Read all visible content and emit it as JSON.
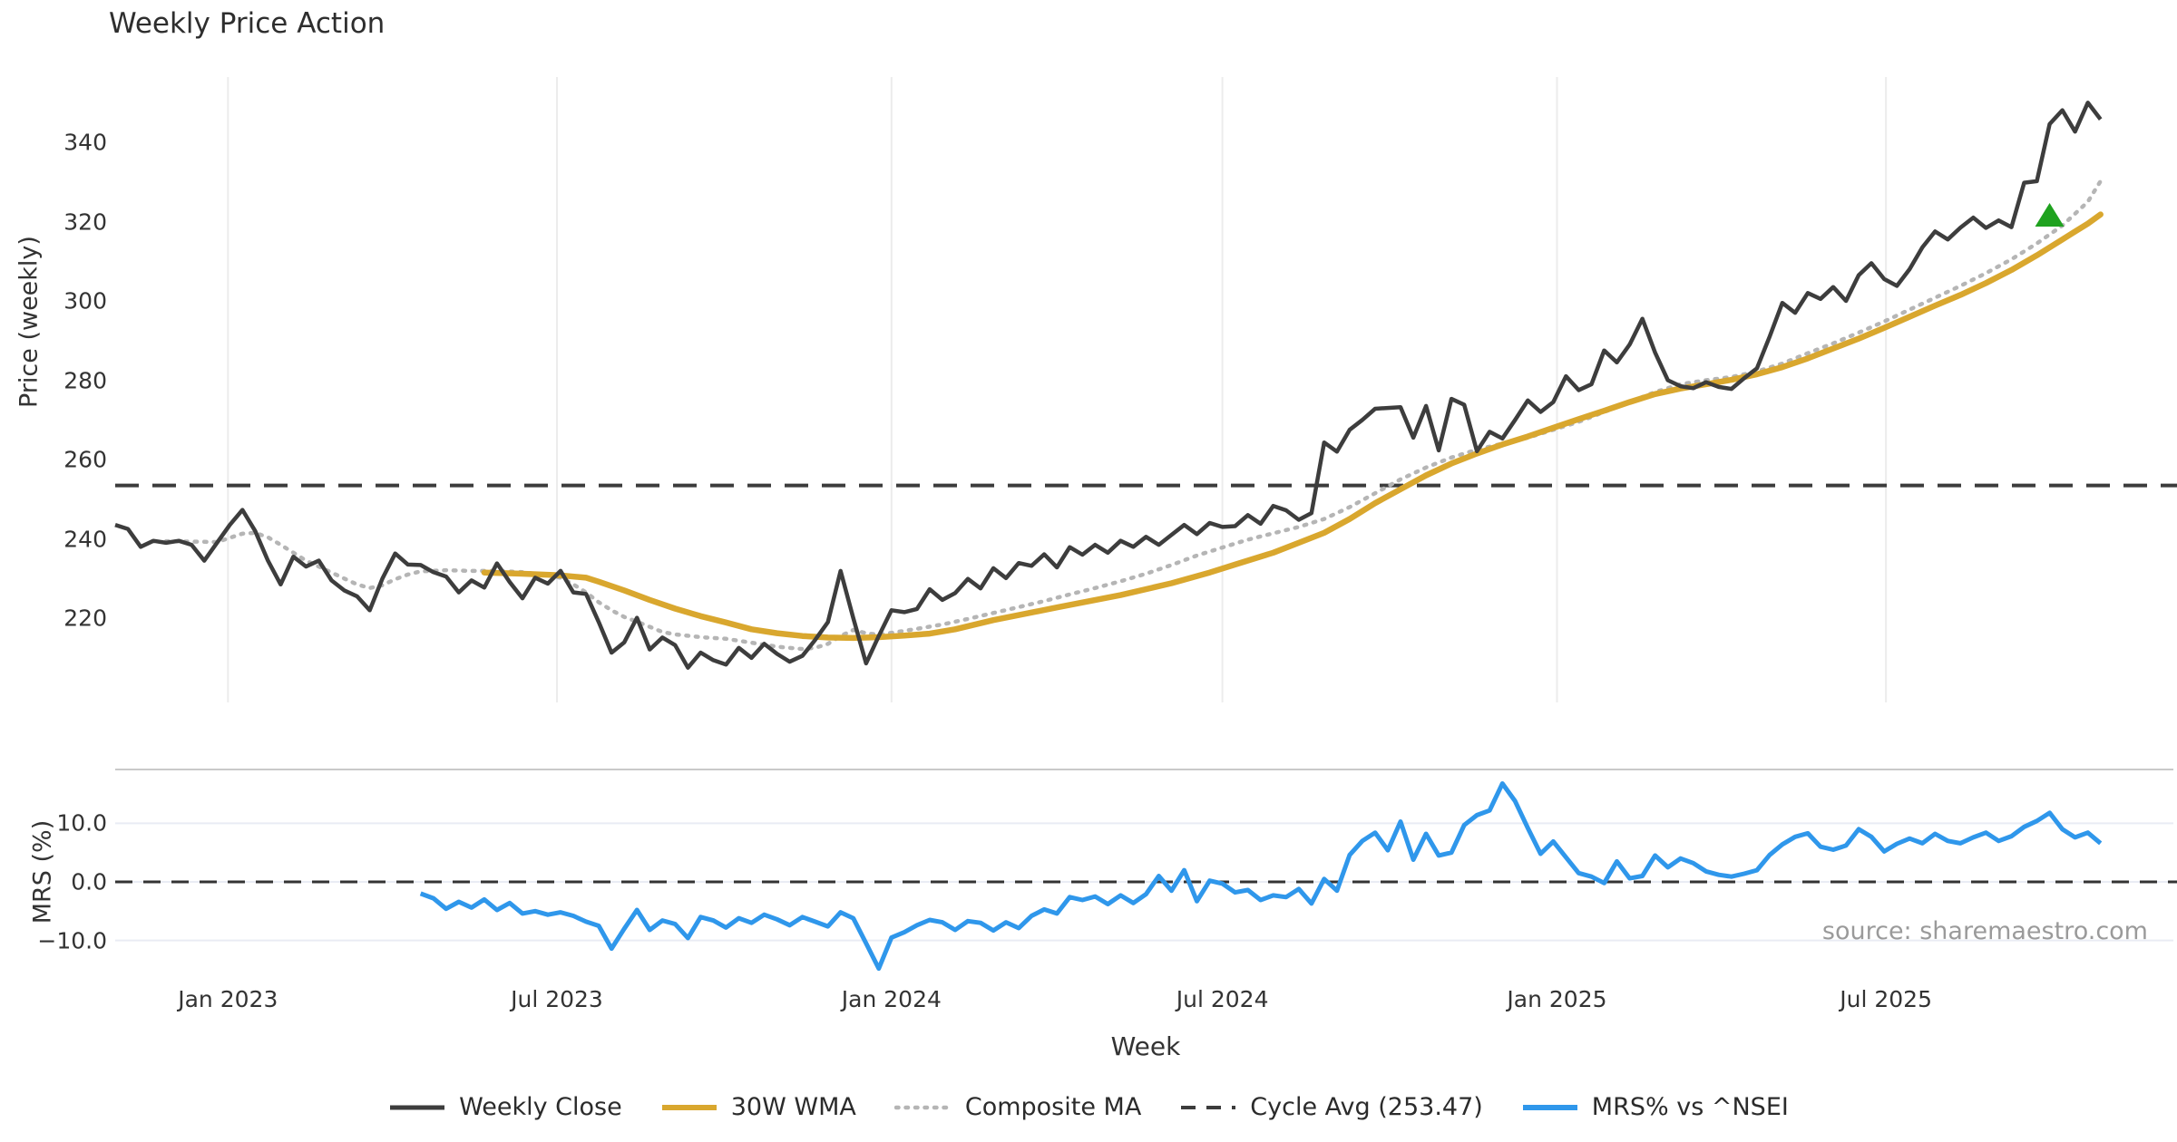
{
  "title": "Weekly Price Action",
  "source_note": "source: sharemaestro.com",
  "colors": {
    "weekly_close": "#3d3d3d",
    "wma_30w": "#d9a72e",
    "composite_ma": "#b5b5b5",
    "cycle_avg": "#3c3c3c",
    "mrs_line": "#2f97eb",
    "signal_marker": "#1fa21f",
    "grid_vertical": "#ececec",
    "grid_horizontal": "#e9ecf4",
    "panel_spine": "#c9c9c9",
    "text": "#333333",
    "source_text": "#9a9a9a"
  },
  "x_axis": {
    "label": "Week",
    "start_date": "2022-10-31",
    "frequency": "weekly",
    "ticks": [
      {
        "label": "Jan 2023",
        "week": 8.86
      },
      {
        "label": "Jul 2023",
        "week": 34.71
      },
      {
        "label": "Jan 2024",
        "week": 61.0
      },
      {
        "label": "Jul 2024",
        "week": 87.0
      },
      {
        "label": "Jan 2025",
        "week": 113.29
      },
      {
        "label": "Jul 2025",
        "week": 139.14
      }
    ]
  },
  "price_axis": {
    "label": "Price (weekly)",
    "ticks": [
      {
        "label": "220",
        "value": 220
      },
      {
        "label": "240",
        "value": 240
      },
      {
        "label": "260",
        "value": 260
      },
      {
        "label": "280",
        "value": 280
      },
      {
        "label": "300",
        "value": 300
      },
      {
        "label": "320",
        "value": 320
      },
      {
        "label": "340",
        "value": 340
      }
    ]
  },
  "mrs_axis": {
    "label": "MRS (%)",
    "ticks": [
      {
        "label": "10.0",
        "value": 10
      },
      {
        "label": "0.0",
        "value": 0
      },
      {
        "label": "−10.0",
        "value": -10
      }
    ]
  },
  "legend": [
    {
      "label": "Weekly Close",
      "style": "solid",
      "color": "#3d3d3d"
    },
    {
      "label": "30W WMA",
      "style": "solid-thick",
      "color": "#d9a72e"
    },
    {
      "label": "Composite MA",
      "style": "dotted",
      "color": "#b5b5b5"
    },
    {
      "label": "Cycle Avg (253.47)",
      "style": "dashed",
      "color": "#3c3c3c"
    },
    {
      "label": "MRS% vs ^NSEI",
      "style": "solid-thick",
      "color": "#2f97eb"
    }
  ],
  "chart_data": [
    {
      "type": "line",
      "panel": "price",
      "title": "Weekly Price Action",
      "ylabel": "Price (weekly)",
      "ylim": [
        205,
        355
      ],
      "grid": "vertical-only",
      "cycle_avg_value": 253.47,
      "signal_marker": {
        "symbol": "triangle-up",
        "week": 152,
        "value": 321.5,
        "color": "#1fa21f"
      },
      "series": [
        {
          "name": "Weekly Close",
          "start_week": 0,
          "values": [
            243.5,
            242.5,
            238.0,
            239.5,
            239.0,
            239.5,
            238.5,
            234.5,
            239.0,
            243.5,
            247.3,
            242.0,
            234.5,
            228.5,
            235.5,
            233.0,
            234.5,
            229.5,
            227.0,
            225.5,
            222.0,
            230.0,
            236.3,
            233.5,
            233.4,
            231.6,
            230.5,
            226.5,
            229.5,
            227.7,
            233.8,
            229.1,
            225.0,
            230.2,
            228.7,
            231.9,
            226.5,
            226.1,
            219.0,
            211.3,
            213.9,
            220.1,
            212.1,
            215.1,
            213.2,
            207.5,
            211.3,
            209.4,
            208.3,
            212.5,
            210.0,
            213.5,
            211.0,
            209.0,
            210.5,
            214.5,
            219.0,
            231.9,
            220.0,
            208.6,
            215.5,
            222.0,
            221.5,
            222.3,
            227.3,
            224.6,
            226.3,
            229.9,
            227.5,
            232.6,
            230.1,
            233.9,
            233.2,
            236.1,
            232.8,
            237.9,
            236.0,
            238.5,
            236.5,
            239.5,
            238.0,
            240.5,
            238.5,
            241.0,
            243.5,
            241.2,
            244.0,
            243.0,
            243.2,
            246.0,
            243.8,
            248.3,
            247.2,
            244.8,
            246.5,
            264.3,
            262.0,
            267.5,
            270.0,
            272.8,
            273.0,
            273.2,
            265.5,
            273.5,
            262.3,
            275.3,
            273.8,
            262.1,
            267.0,
            265.3,
            270.0,
            274.9,
            272.0,
            274.5,
            281.0,
            277.5,
            279.0,
            287.5,
            284.5,
            289.0,
            295.5,
            287.0,
            280.0,
            278.5,
            278.0,
            279.5,
            278.3,
            277.8,
            280.5,
            283.0,
            291.0,
            299.5,
            297.0,
            302.0,
            300.5,
            303.5,
            300.0,
            306.5,
            309.5,
            305.5,
            303.8,
            308.0,
            313.5,
            317.5,
            315.5,
            318.5,
            321.0,
            318.4,
            320.3,
            318.6,
            329.8,
            330.2,
            344.6,
            348.1,
            342.7,
            350.0,
            345.8
          ]
        },
        {
          "name": "30W WMA",
          "anchors": [
            [
              29,
              231.5
            ],
            [
              32,
              231.2
            ],
            [
              35,
              230.8
            ],
            [
              37,
              230.2
            ],
            [
              38,
              229.2
            ],
            [
              40,
              227.0
            ],
            [
              42,
              224.6
            ],
            [
              44,
              222.4
            ],
            [
              46,
              220.5
            ],
            [
              48,
              218.9
            ],
            [
              50,
              217.2
            ],
            [
              52,
              216.2
            ],
            [
              54,
              215.5
            ],
            [
              56,
              215.1
            ],
            [
              58,
              215.0
            ],
            [
              60,
              215.2
            ],
            [
              62,
              215.6
            ],
            [
              64,
              216.1
            ],
            [
              66,
              217.2
            ],
            [
              69,
              219.5
            ],
            [
              74,
              222.7
            ],
            [
              79,
              225.8
            ],
            [
              83,
              228.8
            ],
            [
              86,
              231.5
            ],
            [
              88,
              233.5
            ],
            [
              91,
              236.5
            ],
            [
              93,
              239.0
            ],
            [
              95,
              241.5
            ],
            [
              97,
              245.0
            ],
            [
              99,
              249.0
            ],
            [
              101,
              252.5
            ],
            [
              103,
              256.0
            ],
            [
              105,
              259.0
            ],
            [
              107,
              261.5
            ],
            [
              109,
              263.8
            ],
            [
              111,
              265.8
            ],
            [
              113,
              268.0
            ],
            [
              115,
              270.2
            ],
            [
              117,
              272.3
            ],
            [
              119,
              274.5
            ],
            [
              121,
              276.5
            ],
            [
              123,
              277.9
            ],
            [
              125,
              279.0
            ],
            [
              127,
              280.1
            ],
            [
              129,
              281.5
            ],
            [
              131,
              283.3
            ],
            [
              133,
              285.5
            ],
            [
              135,
              288.0
            ],
            [
              137,
              290.5
            ],
            [
              139,
              293.2
            ],
            [
              141,
              296.0
            ],
            [
              143,
              298.8
            ],
            [
              145,
              301.5
            ],
            [
              147,
              304.5
            ],
            [
              149,
              307.8
            ],
            [
              151,
              311.5
            ],
            [
              153,
              315.5
            ],
            [
              155,
              319.5
            ],
            [
              156,
              321.8
            ]
          ]
        },
        {
          "name": "Composite MA",
          "anchors": [
            [
              4,
              239.4
            ],
            [
              6,
              239.3
            ],
            [
              8,
              239.2
            ],
            [
              10,
              241.3
            ],
            [
              11,
              241.5
            ],
            [
              12,
              240.4
            ],
            [
              13,
              238.5
            ],
            [
              14,
              236.5
            ],
            [
              15,
              234.5
            ],
            [
              16,
              233.0
            ],
            [
              17,
              231.5
            ],
            [
              18,
              230.0
            ],
            [
              19,
              228.5
            ],
            [
              20,
              227.6
            ],
            [
              21,
              228.3
            ],
            [
              22,
              229.8
            ],
            [
              23,
              231.0
            ],
            [
              24,
              231.8
            ],
            [
              26,
              232.1
            ],
            [
              28,
              231.9
            ],
            [
              30,
              231.9
            ],
            [
              32,
              231.6
            ],
            [
              34,
              230.8
            ],
            [
              35,
              230.2
            ],
            [
              36,
              228.5
            ],
            [
              37,
              226.5
            ],
            [
              38,
              224.0
            ],
            [
              39,
              222.0
            ],
            [
              40,
              220.3
            ],
            [
              41,
              219.1
            ],
            [
              42,
              217.8
            ],
            [
              43,
              216.5
            ],
            [
              44,
              215.9
            ],
            [
              46,
              215.2
            ],
            [
              48,
              214.8
            ],
            [
              50,
              213.8
            ],
            [
              52,
              212.8
            ],
            [
              54,
              212.2
            ],
            [
              55,
              212.5
            ],
            [
              56,
              213.5
            ],
            [
              57,
              215.5
            ],
            [
              58,
              217.0
            ],
            [
              59,
              216.2
            ],
            [
              60,
              215.8
            ],
            [
              61,
              216.3
            ],
            [
              63,
              217.3
            ],
            [
              65,
              218.4
            ],
            [
              67,
              219.8
            ],
            [
              69,
              221.3
            ],
            [
              71,
              222.8
            ],
            [
              73,
              224.3
            ],
            [
              75,
              226.0
            ],
            [
              77,
              227.6
            ],
            [
              79,
              229.3
            ],
            [
              81,
              231.2
            ],
            [
              83,
              233.4
            ],
            [
              85,
              235.8
            ],
            [
              87,
              237.8
            ],
            [
              89,
              239.8
            ],
            [
              91,
              241.4
            ],
            [
              93,
              243.0
            ],
            [
              95,
              245.0
            ],
            [
              97,
              248.0
            ],
            [
              99,
              251.5
            ],
            [
              101,
              255.0
            ],
            [
              103,
              258.0
            ],
            [
              105,
              260.5
            ],
            [
              107,
              262.5
            ],
            [
              109,
              264.0
            ],
            [
              111,
              265.5
            ],
            [
              113,
              267.5
            ],
            [
              115,
              269.5
            ],
            [
              117,
              272.0
            ],
            [
              119,
              274.5
            ],
            [
              121,
              277.0
            ],
            [
              123,
              279.0
            ],
            [
              125,
              280.0
            ],
            [
              127,
              280.8
            ],
            [
              129,
              282.2
            ],
            [
              131,
              284.2
            ],
            [
              133,
              286.8
            ],
            [
              135,
              289.3
            ],
            [
              137,
              292.0
            ],
            [
              139,
              294.8
            ],
            [
              141,
              297.8
            ],
            [
              143,
              300.8
            ],
            [
              145,
              303.8
            ],
            [
              147,
              307.0
            ],
            [
              149,
              310.5
            ],
            [
              151,
              314.5
            ],
            [
              153,
              319.0
            ],
            [
              155,
              325.0
            ],
            [
              156,
              330.2
            ]
          ]
        }
      ]
    },
    {
      "type": "line",
      "panel": "mrs",
      "ylabel": "MRS (%)",
      "ylim": [
        -19,
        19
      ],
      "zero_line": 0.0,
      "series": [
        {
          "name": "MRS% vs ^NSEI",
          "start_week": 24,
          "values": [
            -2.0,
            -2.8,
            -4.6,
            -3.4,
            -4.4,
            -3.0,
            -4.8,
            -3.6,
            -5.4,
            -5.0,
            -5.6,
            -5.2,
            -5.8,
            -6.8,
            -7.5,
            -11.4,
            -8.0,
            -4.8,
            -8.2,
            -6.6,
            -7.2,
            -9.6,
            -6.0,
            -6.6,
            -7.8,
            -6.2,
            -7.0,
            -5.6,
            -6.4,
            -7.4,
            -6.0,
            -6.8,
            -7.6,
            -5.2,
            -6.2,
            -10.5,
            -14.8,
            -9.5,
            -8.6,
            -7.4,
            -6.5,
            -6.9,
            -8.2,
            -6.7,
            -7.0,
            -8.3,
            -6.9,
            -7.9,
            -5.8,
            -4.7,
            -5.4,
            -2.6,
            -3.1,
            -2.5,
            -3.8,
            -2.3,
            -3.6,
            -2.1,
            1.0,
            -1.5,
            2.0,
            -3.3,
            0.2,
            -0.3,
            -1.8,
            -1.4,
            -3.1,
            -2.3,
            -2.6,
            -1.2,
            -3.7,
            0.5,
            -1.5,
            4.6,
            7.0,
            8.4,
            5.4,
            10.3,
            3.8,
            8.2,
            4.5,
            5.0,
            9.7,
            11.4,
            12.2,
            16.8,
            13.8,
            9.2,
            4.8,
            6.9,
            4.2,
            1.5,
            0.9,
            -0.2,
            3.5,
            0.6,
            1.0,
            4.5,
            2.5,
            4.0,
            3.2,
            1.8,
            1.2,
            0.9,
            1.4,
            2.0,
            4.6,
            6.4,
            7.7,
            8.3,
            6.0,
            5.5,
            6.2,
            9.0,
            7.7,
            5.2,
            6.5,
            7.4,
            6.6,
            8.2,
            7.0,
            6.6,
            7.6,
            8.4,
            7.0,
            7.8,
            9.4,
            10.4,
            11.8,
            9.0,
            7.6,
            8.4,
            6.6
          ]
        }
      ]
    }
  ]
}
